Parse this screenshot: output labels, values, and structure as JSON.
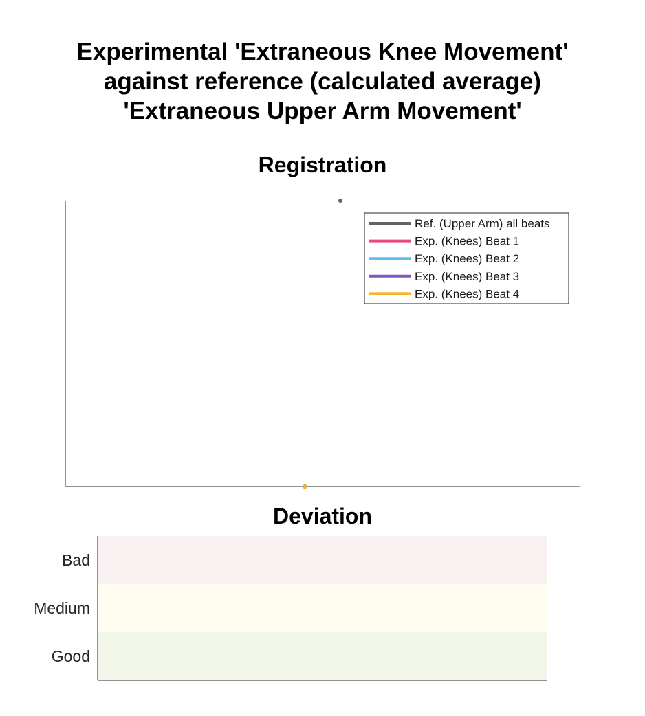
{
  "title_lines": [
    "Experimental 'Extraneous Knee Movement'",
    "against reference (calculated average)",
    "'Extraneous Upper Arm Movement'"
  ],
  "chart_data": [
    {
      "type": "line",
      "title": "Registration",
      "xlabel": "",
      "ylabel": "",
      "grid": false,
      "legend_position": "top-right",
      "series": [
        {
          "name": "Ref. (Upper Arm) all beats",
          "color": "#636363",
          "points": [
            [
              0.534,
              1.0
            ]
          ]
        },
        {
          "name": "Exp. (Knees) Beat 1",
          "color": "#e64980",
          "points": [
            [
              0.465,
              0.0
            ]
          ]
        },
        {
          "name": "Exp. (Knees) Beat 2",
          "color": "#5bc0eb",
          "points": [
            [
              0.465,
              0.0
            ]
          ]
        },
        {
          "name": "Exp. (Knees) Beat 3",
          "color": "#7e57c2",
          "points": [
            [
              0.465,
              0.0
            ]
          ]
        },
        {
          "name": "Exp. (Knees) Beat 4",
          "color": "#f6b426",
          "points": [
            [
              0.465,
              0.0
            ]
          ]
        }
      ]
    },
    {
      "type": "heatmap",
      "title": "Deviation",
      "categories": [
        "Bad",
        "Medium",
        "Good"
      ],
      "band_colors": [
        "#f9f0f1",
        "#fffcf0",
        "#f2f7ea"
      ]
    }
  ]
}
